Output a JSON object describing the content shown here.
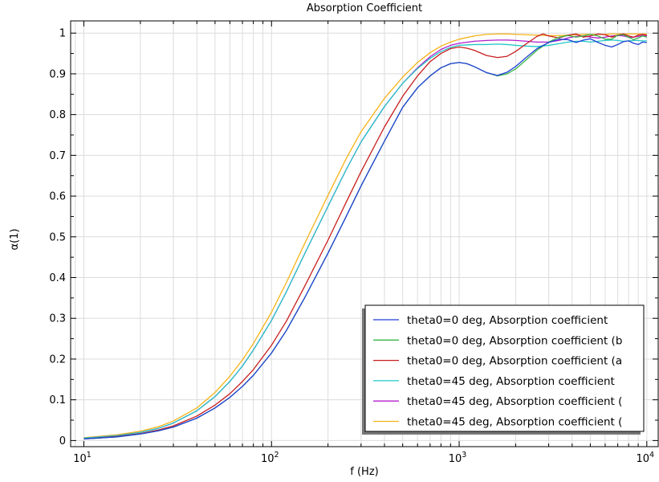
{
  "chart_data": {
    "type": "line",
    "title": "Absorption Coefficient",
    "xlabel": "f (Hz)",
    "ylabel": "α(1)",
    "xscale": "log",
    "xlim": [
      8.5,
      11500
    ],
    "ylim": [
      -0.015,
      1.03
    ],
    "grid": true,
    "legend_position": "bottom-right",
    "x_ticks": [
      {
        "value": 10,
        "base": "10",
        "exp": "1"
      },
      {
        "value": 100,
        "base": "10",
        "exp": "2"
      },
      {
        "value": 1000,
        "base": "10",
        "exp": "3"
      },
      {
        "value": 10000,
        "base": "10",
        "exp": "4"
      }
    ],
    "y_ticks": [
      {
        "value": 0,
        "label": "0"
      },
      {
        "value": 0.1,
        "label": "0.1"
      },
      {
        "value": 0.2,
        "label": "0.2"
      },
      {
        "value": 0.3,
        "label": "0.3"
      },
      {
        "value": 0.4,
        "label": "0.4"
      },
      {
        "value": 0.5,
        "label": "0.5"
      },
      {
        "value": 0.6,
        "label": "0.6"
      },
      {
        "value": 0.7,
        "label": "0.7"
      },
      {
        "value": 0.8,
        "label": "0.8"
      },
      {
        "value": 0.9,
        "label": "0.9"
      },
      {
        "value": 1,
        "label": "1"
      }
    ],
    "series": [
      {
        "name": "theta0=0 deg, Absorption coefficient",
        "color": "#1f3fd6",
        "points": [
          [
            10,
            0.004
          ],
          [
            15,
            0.009
          ],
          [
            20,
            0.016
          ],
          [
            25,
            0.024
          ],
          [
            30,
            0.033
          ],
          [
            40,
            0.055
          ],
          [
            50,
            0.08
          ],
          [
            60,
            0.106
          ],
          [
            70,
            0.133
          ],
          [
            80,
            0.16
          ],
          [
            100,
            0.215
          ],
          [
            120,
            0.27
          ],
          [
            150,
            0.35
          ],
          [
            200,
            0.46
          ],
          [
            250,
            0.55
          ],
          [
            300,
            0.625
          ],
          [
            400,
            0.735
          ],
          [
            500,
            0.818
          ],
          [
            600,
            0.866
          ],
          [
            700,
            0.895
          ],
          [
            800,
            0.915
          ],
          [
            900,
            0.925
          ],
          [
            1000,
            0.928
          ],
          [
            1100,
            0.925
          ],
          [
            1200,
            0.918
          ],
          [
            1400,
            0.903
          ],
          [
            1600,
            0.896
          ],
          [
            1800,
            0.904
          ],
          [
            2000,
            0.918
          ],
          [
            2300,
            0.942
          ],
          [
            2600,
            0.962
          ],
          [
            3000,
            0.977
          ],
          [
            3400,
            0.985
          ],
          [
            3800,
            0.984
          ],
          [
            4200,
            0.977
          ],
          [
            4600,
            0.983
          ],
          [
            5000,
            0.986
          ],
          [
            5500,
            0.977
          ],
          [
            6000,
            0.97
          ],
          [
            6500,
            0.966
          ],
          [
            7000,
            0.972
          ],
          [
            7500,
            0.979
          ],
          [
            8000,
            0.981
          ],
          [
            8500,
            0.975
          ],
          [
            9000,
            0.972
          ],
          [
            9500,
            0.978
          ],
          [
            10000,
            0.977
          ]
        ]
      },
      {
        "name": "theta0=0 deg, Absorption coefficient (b",
        "color": "#3ab54a",
        "points": [
          [
            10,
            0.004
          ],
          [
            15,
            0.009
          ],
          [
            20,
            0.016
          ],
          [
            25,
            0.024
          ],
          [
            30,
            0.033
          ],
          [
            40,
            0.055
          ],
          [
            50,
            0.08
          ],
          [
            60,
            0.106
          ],
          [
            70,
            0.133
          ],
          [
            80,
            0.16
          ],
          [
            100,
            0.215
          ],
          [
            120,
            0.27
          ],
          [
            150,
            0.35
          ],
          [
            200,
            0.46
          ],
          [
            250,
            0.55
          ],
          [
            300,
            0.625
          ],
          [
            400,
            0.735
          ],
          [
            500,
            0.818
          ],
          [
            600,
            0.866
          ],
          [
            700,
            0.895
          ],
          [
            800,
            0.915
          ],
          [
            900,
            0.925
          ],
          [
            1000,
            0.928
          ],
          [
            1100,
            0.925
          ],
          [
            1200,
            0.918
          ],
          [
            1400,
            0.903
          ],
          [
            1600,
            0.895
          ],
          [
            1800,
            0.9
          ],
          [
            2000,
            0.912
          ],
          [
            2300,
            0.936
          ],
          [
            2600,
            0.958
          ],
          [
            3000,
            0.978
          ],
          [
            3400,
            0.99
          ],
          [
            3800,
            0.994
          ],
          [
            4200,
            0.99
          ],
          [
            4600,
            0.993
          ],
          [
            5000,
            0.997
          ],
          [
            5500,
            0.993
          ],
          [
            6000,
            0.985
          ],
          [
            6500,
            0.985
          ],
          [
            7000,
            0.995
          ],
          [
            7500,
            0.996
          ],
          [
            8000,
            0.99
          ],
          [
            8500,
            0.984
          ],
          [
            9000,
            0.988
          ],
          [
            9500,
            0.993
          ],
          [
            10000,
            0.99
          ]
        ]
      },
      {
        "name": "theta0=0 deg, Absorption coefficient (a",
        "color": "#c81e1e",
        "points": [
          [
            10,
            0.004
          ],
          [
            15,
            0.01
          ],
          [
            20,
            0.017
          ],
          [
            25,
            0.026
          ],
          [
            30,
            0.036
          ],
          [
            40,
            0.06
          ],
          [
            50,
            0.087
          ],
          [
            60,
            0.115
          ],
          [
            70,
            0.145
          ],
          [
            80,
            0.174
          ],
          [
            100,
            0.234
          ],
          [
            120,
            0.293
          ],
          [
            150,
            0.378
          ],
          [
            200,
            0.492
          ],
          [
            250,
            0.585
          ],
          [
            300,
            0.66
          ],
          [
            400,
            0.77
          ],
          [
            500,
            0.845
          ],
          [
            600,
            0.895
          ],
          [
            700,
            0.93
          ],
          [
            800,
            0.95
          ],
          [
            900,
            0.962
          ],
          [
            1000,
            0.966
          ],
          [
            1100,
            0.963
          ],
          [
            1200,
            0.958
          ],
          [
            1400,
            0.945
          ],
          [
            1600,
            0.94
          ],
          [
            1800,
            0.943
          ],
          [
            2000,
            0.955
          ],
          [
            2300,
            0.975
          ],
          [
            2600,
            0.992
          ],
          [
            2800,
            0.998
          ],
          [
            3000,
            0.993
          ],
          [
            3400,
            0.988
          ],
          [
            3800,
            0.995
          ],
          [
            4200,
            0.998
          ],
          [
            4600,
            0.99
          ],
          [
            5000,
            0.993
          ],
          [
            5500,
            0.998
          ],
          [
            6000,
            0.996
          ],
          [
            6500,
            0.99
          ],
          [
            7000,
            0.995
          ],
          [
            7500,
            0.998
          ],
          [
            8000,
            0.993
          ],
          [
            8500,
            0.99
          ],
          [
            9000,
            0.995
          ],
          [
            9500,
            0.997
          ],
          [
            10000,
            0.995
          ]
        ]
      },
      {
        "name": "theta0=45 deg, Absorption coefficient",
        "color": "#22c7c7",
        "points": [
          [
            10,
            0.006
          ],
          [
            15,
            0.012
          ],
          [
            20,
            0.02
          ],
          [
            25,
            0.03
          ],
          [
            30,
            0.043
          ],
          [
            40,
            0.073
          ],
          [
            50,
            0.108
          ],
          [
            60,
            0.145
          ],
          [
            70,
            0.183
          ],
          [
            80,
            0.222
          ],
          [
            100,
            0.295
          ],
          [
            120,
            0.365
          ],
          [
            150,
            0.458
          ],
          [
            200,
            0.575
          ],
          [
            250,
            0.665
          ],
          [
            300,
            0.733
          ],
          [
            400,
            0.82
          ],
          [
            500,
            0.877
          ],
          [
            600,
            0.913
          ],
          [
            700,
            0.938
          ],
          [
            800,
            0.955
          ],
          [
            900,
            0.965
          ],
          [
            1000,
            0.97
          ],
          [
            1200,
            0.972
          ],
          [
            1400,
            0.972
          ],
          [
            1600,
            0.973
          ],
          [
            1800,
            0.972
          ],
          [
            2000,
            0.97
          ],
          [
            2300,
            0.968
          ],
          [
            2600,
            0.967
          ],
          [
            3000,
            0.97
          ],
          [
            3400,
            0.974
          ],
          [
            3800,
            0.978
          ],
          [
            4200,
            0.98
          ],
          [
            4600,
            0.98
          ],
          [
            5000,
            0.978
          ],
          [
            5500,
            0.98
          ],
          [
            6000,
            0.982
          ],
          [
            6500,
            0.983
          ],
          [
            7000,
            0.982
          ],
          [
            7500,
            0.98
          ],
          [
            8000,
            0.981
          ],
          [
            8500,
            0.982
          ],
          [
            9000,
            0.982
          ],
          [
            9500,
            0.981
          ],
          [
            10000,
            0.981
          ]
        ]
      },
      {
        "name": "theta0=45 deg, Absorption coefficient (",
        "color": "#b31fcc",
        "points": [
          [
            10,
            0.006
          ],
          [
            15,
            0.012
          ],
          [
            20,
            0.02
          ],
          [
            25,
            0.03
          ],
          [
            30,
            0.043
          ],
          [
            40,
            0.073
          ],
          [
            50,
            0.108
          ],
          [
            60,
            0.145
          ],
          [
            70,
            0.183
          ],
          [
            80,
            0.222
          ],
          [
            100,
            0.295
          ],
          [
            120,
            0.365
          ],
          [
            150,
            0.458
          ],
          [
            200,
            0.575
          ],
          [
            250,
            0.665
          ],
          [
            300,
            0.733
          ],
          [
            400,
            0.82
          ],
          [
            500,
            0.877
          ],
          [
            600,
            0.915
          ],
          [
            700,
            0.942
          ],
          [
            800,
            0.96
          ],
          [
            900,
            0.97
          ],
          [
            1000,
            0.975
          ],
          [
            1200,
            0.98
          ],
          [
            1400,
            0.982
          ],
          [
            1600,
            0.983
          ],
          [
            1800,
            0.983
          ],
          [
            2000,
            0.982
          ],
          [
            2300,
            0.98
          ],
          [
            2600,
            0.978
          ],
          [
            3000,
            0.978
          ],
          [
            3400,
            0.982
          ],
          [
            3800,
            0.988
          ],
          [
            4200,
            0.992
          ],
          [
            4600,
            0.993
          ],
          [
            5000,
            0.99
          ],
          [
            5500,
            0.988
          ],
          [
            6000,
            0.99
          ],
          [
            6500,
            0.993
          ],
          [
            7000,
            0.994
          ],
          [
            7500,
            0.993
          ],
          [
            8000,
            0.99
          ],
          [
            8500,
            0.99
          ],
          [
            9000,
            0.992
          ],
          [
            9500,
            0.994
          ],
          [
            10000,
            0.993
          ]
        ]
      },
      {
        "name": "theta0=45 deg, Absorption coefficient (",
        "color": "#f5b316",
        "points": [
          [
            10,
            0.007
          ],
          [
            15,
            0.014
          ],
          [
            20,
            0.023
          ],
          [
            25,
            0.034
          ],
          [
            30,
            0.048
          ],
          [
            40,
            0.08
          ],
          [
            50,
            0.118
          ],
          [
            60,
            0.158
          ],
          [
            70,
            0.198
          ],
          [
            80,
            0.238
          ],
          [
            100,
            0.315
          ],
          [
            120,
            0.388
          ],
          [
            150,
            0.483
          ],
          [
            200,
            0.602
          ],
          [
            250,
            0.692
          ],
          [
            300,
            0.758
          ],
          [
            400,
            0.84
          ],
          [
            500,
            0.892
          ],
          [
            600,
            0.928
          ],
          [
            700,
            0.952
          ],
          [
            800,
            0.968
          ],
          [
            900,
            0.978
          ],
          [
            1000,
            0.985
          ],
          [
            1200,
            0.993
          ],
          [
            1400,
            0.997
          ],
          [
            1600,
            0.998
          ],
          [
            1800,
            0.998
          ],
          [
            2000,
            0.997
          ],
          [
            2300,
            0.996
          ],
          [
            2600,
            0.995
          ],
          [
            3000,
            0.994
          ],
          [
            3400,
            0.994
          ],
          [
            3800,
            0.995
          ],
          [
            4200,
            0.996
          ],
          [
            4600,
            0.997
          ],
          [
            5000,
            0.997
          ],
          [
            5500,
            0.997
          ],
          [
            6000,
            0.997
          ],
          [
            6500,
            0.998
          ],
          [
            7000,
            0.998
          ],
          [
            7500,
            0.998
          ],
          [
            8000,
            0.998
          ],
          [
            8500,
            0.998
          ],
          [
            9000,
            0.998
          ],
          [
            9500,
            0.998
          ],
          [
            10000,
            0.998
          ]
        ]
      }
    ]
  }
}
